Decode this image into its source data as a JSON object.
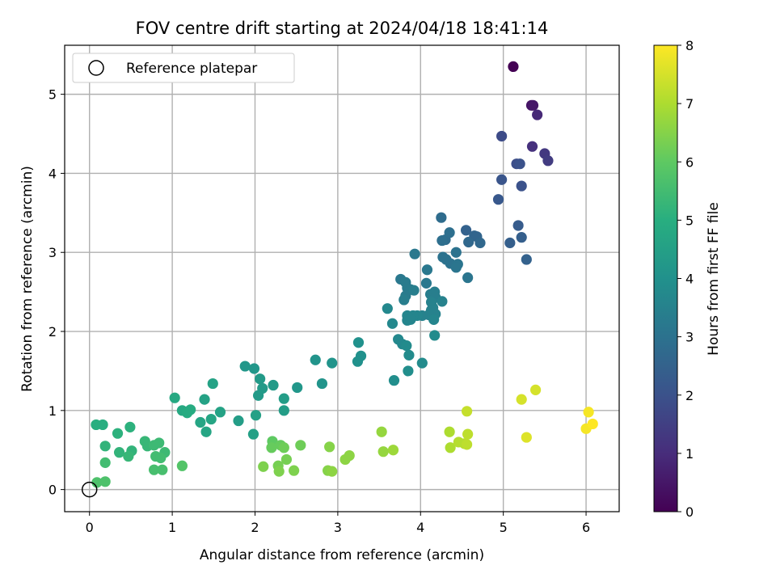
{
  "chart_data": {
    "type": "scatter",
    "title": "FOV centre drift starting at 2024/04/18 18:41:14",
    "xlabel": "Angular distance from reference (arcmin)",
    "ylabel": "Rotation from reference (arcmin)",
    "xlim": [
      -0.3,
      6.4
    ],
    "ylim": [
      -0.28,
      5.62
    ],
    "xticks": [
      0,
      1,
      2,
      3,
      4,
      5,
      6
    ],
    "yticks": [
      0,
      1,
      2,
      3,
      4,
      5
    ],
    "grid": true,
    "legend": {
      "placement": "top-left",
      "entries": [
        "Reference platepar"
      ]
    },
    "colorbar": {
      "label": "Hours from first FF file",
      "range": [
        0,
        8
      ],
      "ticks": [
        0,
        1,
        2,
        3,
        4,
        5,
        6,
        7,
        8
      ],
      "colormap": "viridis"
    },
    "reference_point": {
      "x": 0,
      "y": 0
    },
    "series": [
      {
        "points": [
          [
            5.12,
            5.35,
            0.0
          ],
          [
            5.34,
            4.86,
            0.4
          ],
          [
            5.36,
            4.86,
            0.5
          ],
          [
            5.41,
            4.74,
            0.9
          ],
          [
            5.35,
            4.34,
            1.1
          ],
          [
            5.5,
            4.25,
            1.3
          ],
          [
            5.54,
            4.16,
            1.4
          ],
          [
            4.98,
            4.47,
            1.8
          ],
          [
            5.16,
            4.12,
            1.9
          ],
          [
            5.2,
            4.12,
            2.0
          ],
          [
            5.22,
            3.84,
            2.0
          ],
          [
            4.98,
            3.92,
            2.1
          ],
          [
            4.94,
            3.67,
            2.2
          ],
          [
            5.18,
            3.34,
            2.3
          ],
          [
            5.22,
            3.19,
            2.4
          ],
          [
            5.08,
            3.12,
            2.4
          ],
          [
            5.28,
            2.91,
            2.5
          ],
          [
            4.55,
            3.28,
            2.5
          ],
          [
            4.65,
            3.21,
            2.6
          ],
          [
            4.68,
            3.2,
            2.6
          ],
          [
            4.72,
            3.12,
            2.7
          ],
          [
            4.58,
            3.13,
            2.7
          ],
          [
            4.25,
            3.44,
            2.8
          ],
          [
            4.3,
            3.16,
            2.8
          ],
          [
            4.35,
            3.25,
            2.9
          ],
          [
            4.26,
            3.15,
            2.9
          ],
          [
            4.43,
            3.0,
            3.0
          ],
          [
            4.27,
            2.94,
            3.0
          ],
          [
            4.31,
            2.91,
            3.0
          ],
          [
            4.36,
            2.86,
            3.0
          ],
          [
            4.45,
            2.85,
            3.1
          ],
          [
            4.43,
            2.81,
            3.1
          ],
          [
            4.57,
            2.68,
            3.1
          ],
          [
            3.93,
            2.98,
            3.2
          ],
          [
            4.08,
            2.78,
            3.2
          ],
          [
            4.07,
            2.61,
            3.2
          ],
          [
            3.76,
            2.66,
            3.2
          ],
          [
            3.82,
            2.62,
            3.3
          ],
          [
            3.84,
            2.55,
            3.3
          ],
          [
            3.88,
            2.53,
            3.3
          ],
          [
            3.82,
            2.45,
            3.3
          ],
          [
            3.92,
            2.52,
            3.4
          ],
          [
            3.8,
            2.4,
            3.4
          ],
          [
            4.12,
            2.47,
            3.4
          ],
          [
            4.17,
            2.5,
            3.4
          ],
          [
            4.18,
            2.43,
            3.4
          ],
          [
            4.26,
            2.38,
            3.5
          ],
          [
            4.13,
            2.37,
            3.5
          ],
          [
            4.15,
            2.3,
            3.5
          ],
          [
            4.13,
            2.27,
            3.5
          ],
          [
            4.18,
            2.22,
            3.5
          ],
          [
            4.1,
            2.21,
            3.5
          ],
          [
            4.02,
            2.2,
            3.5
          ],
          [
            3.96,
            2.2,
            3.6
          ],
          [
            3.91,
            2.2,
            3.6
          ],
          [
            3.84,
            2.2,
            3.6
          ],
          [
            3.84,
            2.14,
            3.6
          ],
          [
            3.88,
            2.15,
            3.6
          ],
          [
            4.16,
            2.15,
            3.6
          ],
          [
            3.6,
            2.29,
            3.7
          ],
          [
            3.66,
            2.1,
            3.7
          ],
          [
            3.73,
            1.9,
            3.7
          ],
          [
            3.78,
            1.84,
            3.7
          ],
          [
            3.83,
            1.82,
            3.8
          ],
          [
            3.86,
            1.7,
            3.8
          ],
          [
            4.17,
            1.95,
            3.8
          ],
          [
            4.02,
            1.6,
            3.8
          ],
          [
            3.85,
            1.5,
            3.9
          ],
          [
            3.68,
            1.38,
            3.9
          ],
          [
            3.25,
            1.86,
            4.0
          ],
          [
            3.28,
            1.69,
            4.0
          ],
          [
            3.24,
            1.62,
            4.0
          ],
          [
            2.73,
            1.64,
            4.1
          ],
          [
            2.93,
            1.6,
            4.1
          ],
          [
            2.81,
            1.34,
            4.1
          ],
          [
            2.51,
            1.29,
            4.2
          ],
          [
            1.88,
            1.56,
            4.2
          ],
          [
            1.99,
            1.53,
            4.2
          ],
          [
            2.06,
            1.4,
            4.3
          ],
          [
            2.09,
            1.28,
            4.3
          ],
          [
            2.04,
            1.19,
            4.3
          ],
          [
            2.22,
            1.32,
            4.3
          ],
          [
            2.35,
            1.15,
            4.4
          ],
          [
            2.35,
            1.0,
            4.4
          ],
          [
            1.8,
            0.87,
            4.4
          ],
          [
            2.01,
            0.94,
            4.5
          ],
          [
            1.98,
            0.7,
            4.5
          ],
          [
            1.49,
            1.34,
            4.6
          ],
          [
            1.39,
            1.14,
            4.6
          ],
          [
            1.58,
            0.98,
            4.6
          ],
          [
            1.47,
            0.89,
            4.7
          ],
          [
            1.41,
            0.73,
            4.7
          ],
          [
            1.34,
            0.85,
            4.7
          ],
          [
            1.03,
            1.16,
            4.8
          ],
          [
            1.12,
            1.0,
            4.8
          ],
          [
            1.22,
            1.01,
            4.9
          ],
          [
            1.18,
            0.97,
            4.9
          ],
          [
            0.08,
            0.82,
            5.0
          ],
          [
            0.16,
            0.82,
            5.0
          ],
          [
            0.34,
            0.71,
            5.1
          ],
          [
            0.49,
            0.79,
            5.1
          ],
          [
            0.19,
            0.55,
            5.2
          ],
          [
            0.36,
            0.47,
            5.2
          ],
          [
            0.51,
            0.49,
            5.2
          ],
          [
            0.47,
            0.42,
            5.3
          ],
          [
            0.67,
            0.61,
            5.3
          ],
          [
            0.7,
            0.55,
            5.3
          ],
          [
            0.84,
            0.59,
            5.4
          ],
          [
            0.78,
            0.56,
            5.4
          ],
          [
            0.91,
            0.47,
            5.4
          ],
          [
            0.8,
            0.42,
            5.5
          ],
          [
            0.86,
            0.4,
            5.5
          ],
          [
            0.19,
            0.34,
            5.5
          ],
          [
            0.78,
            0.25,
            5.6
          ],
          [
            0.88,
            0.25,
            5.6
          ],
          [
            0.09,
            0.09,
            5.7
          ],
          [
            0.19,
            0.1,
            5.7
          ],
          [
            1.12,
            0.3,
            5.8
          ],
          [
            2.21,
            0.61,
            6.0
          ],
          [
            2.2,
            0.53,
            6.1
          ],
          [
            2.31,
            0.56,
            6.1
          ],
          [
            2.35,
            0.53,
            6.2
          ],
          [
            2.55,
            0.56,
            6.2
          ],
          [
            2.38,
            0.38,
            6.3
          ],
          [
            2.28,
            0.3,
            6.3
          ],
          [
            2.1,
            0.29,
            6.4
          ],
          [
            2.29,
            0.23,
            6.4
          ],
          [
            2.47,
            0.24,
            6.4
          ],
          [
            2.9,
            0.54,
            6.5
          ],
          [
            2.88,
            0.24,
            6.5
          ],
          [
            2.93,
            0.23,
            6.6
          ],
          [
            3.09,
            0.38,
            6.6
          ],
          [
            3.14,
            0.43,
            6.6
          ],
          [
            3.53,
            0.73,
            6.7
          ],
          [
            3.55,
            0.48,
            6.7
          ],
          [
            3.67,
            0.5,
            6.8
          ],
          [
            4.35,
            0.73,
            7.0
          ],
          [
            4.36,
            0.53,
            7.0
          ],
          [
            4.46,
            0.6,
            7.1
          ],
          [
            4.53,
            0.58,
            7.1
          ],
          [
            4.56,
            0.57,
            7.2
          ],
          [
            4.57,
            0.7,
            7.2
          ],
          [
            4.56,
            0.99,
            7.3
          ],
          [
            5.22,
            1.14,
            7.5
          ],
          [
            5.39,
            1.26,
            7.5
          ],
          [
            5.28,
            0.66,
            7.6
          ],
          [
            6.0,
            0.77,
            7.9
          ],
          [
            6.03,
            0.98,
            7.9
          ],
          [
            6.08,
            0.83,
            8.0
          ]
        ]
      }
    ]
  }
}
